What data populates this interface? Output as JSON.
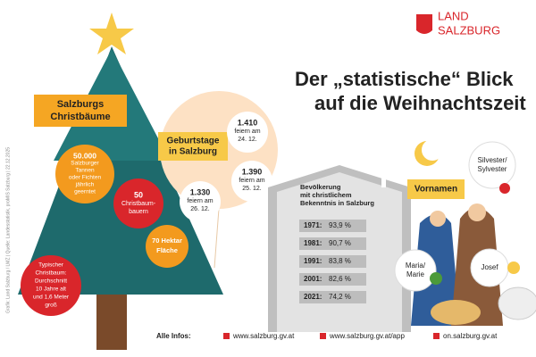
{
  "logo": {
    "line1": "LAND",
    "line2": "SALZBURG"
  },
  "title": {
    "line1": "Der „statistische“ Blick",
    "line2": "auf die Weihnachtszeit"
  },
  "tree": {
    "title": {
      "lines": [
        "Salzburgs",
        "Christbäume"
      ]
    },
    "facts": [
      {
        "lines": [
          "50.000",
          "Salzburger",
          "Tannen",
          "oder Fichten",
          "jährlich",
          "geerntet"
        ]
      },
      {
        "lines": [
          "50",
          "Christbaum-",
          "bauern"
        ]
      },
      {
        "lines": [
          "70 Hektar",
          "Fläche"
        ]
      },
      {
        "lines": [
          "Typischer",
          "Christbaum:",
          "Durchschnitt",
          "10 Jahre alt",
          "und 1,6 Meter",
          "groß"
        ]
      }
    ]
  },
  "birthdays": {
    "title": {
      "lines": [
        "Geburtstage",
        "in Salzburg"
      ]
    },
    "bubbles": [
      {
        "lines": [
          "1.410",
          "feiern am",
          "24. 12."
        ]
      },
      {
        "lines": [
          "1.390",
          "feiern am",
          "25. 12."
        ]
      },
      {
        "lines": [
          "1.330",
          "feiern am",
          "26. 12."
        ]
      }
    ]
  },
  "population": {
    "title": {
      "lines": [
        "Bevölkerung",
        "mit christlichem",
        "Bekenntnis in Salzburg"
      ]
    },
    "rows": [
      [
        "1971:",
        "93,9 %"
      ],
      [
        "1981:",
        "90,7 %"
      ],
      [
        "1991:",
        "83,8 %"
      ],
      [
        "2001:",
        "82,6 %"
      ],
      [
        "2021:",
        "74,2 %"
      ]
    ]
  },
  "names": {
    "title": "Vornamen",
    "items": [
      {
        "lines": [
          "Silvester/",
          "Sylvester"
        ]
      },
      {
        "lines": [
          "Maria/",
          "Marie"
        ]
      },
      {
        "lines": [
          "Josef"
        ]
      }
    ]
  },
  "footer": {
    "label": "Alle Infos:",
    "links": [
      "www.salzburg.gv.at",
      "www.salzburg.gv.at/app",
      "on.salzburg.gv.at"
    ]
  },
  "credit": "Grafik: Land Salzburg / LMZ | Quelle: Landesstatistik, proMIS Salzburg | 22.12.2025"
}
